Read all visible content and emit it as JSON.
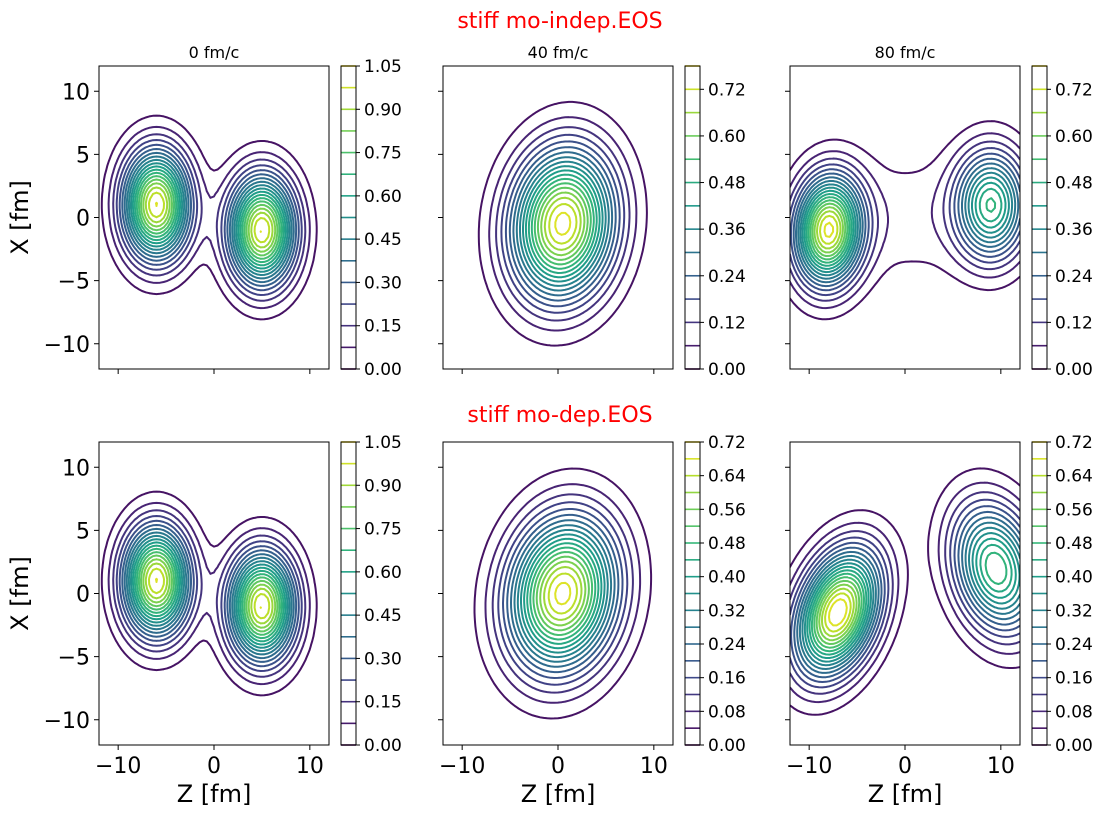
{
  "chart_data": {
    "type": "contour",
    "colormap": "viridis",
    "colors": {
      "row_title": "#ff0000",
      "text": "#000000",
      "viridis": [
        "#440154",
        "#482878",
        "#3e4989",
        "#31688e",
        "#26828e",
        "#1f9e89",
        "#35b779",
        "#6ece58",
        "#b5de2b",
        "#fde725"
      ]
    },
    "rows": [
      {
        "title": "stiff mo-indep.EOS",
        "panels": [
          {
            "title": "0 fm/c",
            "xlim": [
              -12,
              12
            ],
            "ylim": [
              -12,
              12
            ],
            "x_ticks": [
              "−10",
              "0",
              "10"
            ],
            "y_ticks": [
              "10",
              "5",
              "0",
              "−5",
              "−10"
            ],
            "xlabel": "Z [fm]",
            "ylabel": "X [fm]",
            "colorbar": {
              "max": 1.05,
              "ticks": [
                "0.00",
                "0.15",
                "0.30",
                "0.45",
                "0.60",
                "0.75",
                "0.90",
                "1.05"
              ]
            },
            "blobs": [
              {
                "cx": -6,
                "cy": 1,
                "rx": 4.2,
                "ry": 5.2,
                "angle": 0,
                "amp": 1.0
              },
              {
                "cx": 5,
                "cy": -1,
                "rx": 4.2,
                "ry": 5.2,
                "angle": 0,
                "amp": 1.0
              }
            ]
          },
          {
            "title": "40 fm/c",
            "xlim": [
              -12,
              12
            ],
            "ylim": [
              -12,
              12
            ],
            "x_ticks": [
              "−10",
              "0",
              "10"
            ],
            "xlabel": "Z [fm]",
            "colorbar": {
              "max": 0.78,
              "ticks": [
                "0.00",
                "0.12",
                "0.24",
                "0.36",
                "0.48",
                "0.60",
                "0.72"
              ]
            },
            "blobs": [
              {
                "cx": 0.5,
                "cy": -0.5,
                "rx": 6.3,
                "ry": 7.2,
                "angle": -22,
                "amp": 0.76
              }
            ]
          },
          {
            "title": "80 fm/c",
            "xlim": [
              -12,
              12
            ],
            "ylim": [
              -12,
              12
            ],
            "x_ticks": [
              "−10",
              "0",
              "10"
            ],
            "xlabel": "Z [fm]",
            "colorbar": {
              "max": 0.78,
              "ticks": [
                "0.00",
                "0.12",
                "0.24",
                "0.36",
                "0.48",
                "0.60",
                "0.72"
              ]
            },
            "blobs": [
              {
                "cx": -8,
                "cy": -1,
                "rx": 4.2,
                "ry": 5.2,
                "angle": -10,
                "amp": 0.74
              },
              {
                "cx": 9,
                "cy": 1,
                "rx": 4.5,
                "ry": 5.2,
                "angle": 0,
                "amp": 0.5
              },
              {
                "cx": 0.5,
                "cy": 0,
                "rx": 9.5,
                "ry": 6.5,
                "angle": 0,
                "amp": 0.06
              }
            ]
          }
        ]
      },
      {
        "title": "stiff mo-dep.EOS",
        "panels": [
          {
            "title": "",
            "xlim": [
              -12,
              12
            ],
            "ylim": [
              -12,
              12
            ],
            "x_ticks": [
              "−10",
              "0",
              "10"
            ],
            "y_ticks": [
              "10",
              "5",
              "0",
              "−5",
              "−10"
            ],
            "xlabel": "Z [fm]",
            "ylabel": "X [fm]",
            "colorbar": {
              "max": 1.05,
              "ticks": [
                "0.00",
                "0.15",
                "0.30",
                "0.45",
                "0.60",
                "0.75",
                "0.90",
                "1.05"
              ]
            },
            "blobs": [
              {
                "cx": -6,
                "cy": 1,
                "rx": 4.2,
                "ry": 5.2,
                "angle": 0,
                "amp": 1.0
              },
              {
                "cx": 5,
                "cy": -1,
                "rx": 4.2,
                "ry": 5.2,
                "angle": 0,
                "amp": 1.0
              }
            ]
          },
          {
            "title": "",
            "xlim": [
              -12,
              12
            ],
            "ylim": [
              -12,
              12
            ],
            "x_ticks": [
              "−10",
              "0",
              "10"
            ],
            "xlabel": "Z [fm]",
            "colorbar": {
              "max": 0.72,
              "ticks": [
                "0.00",
                "0.08",
                "0.16",
                "0.24",
                "0.32",
                "0.40",
                "0.48",
                "0.56",
                "0.64",
                "0.72"
              ]
            },
            "blobs": [
              {
                "cx": 0.5,
                "cy": 0,
                "rx": 6.5,
                "ry": 7.5,
                "angle": -30,
                "amp": 0.7
              }
            ]
          },
          {
            "title": "",
            "xlim": [
              -12,
              12
            ],
            "ylim": [
              -12,
              12
            ],
            "x_ticks": [
              "−10",
              "0",
              "10"
            ],
            "xlabel": "Z [fm]",
            "colorbar": {
              "max": 0.72,
              "ticks": [
                "0.00",
                "0.08",
                "0.16",
                "0.24",
                "0.32",
                "0.40",
                "0.48",
                "0.56",
                "0.64",
                "0.72"
              ]
            },
            "blobs": [
              {
                "cx": -7,
                "cy": -1.5,
                "rx": 4.5,
                "ry": 6.5,
                "angle": -35,
                "amp": 0.72
              },
              {
                "cx": 9.5,
                "cy": 2,
                "rx": 5.0,
                "ry": 6.5,
                "angle": 30,
                "amp": 0.5
              }
            ]
          }
        ]
      }
    ]
  }
}
